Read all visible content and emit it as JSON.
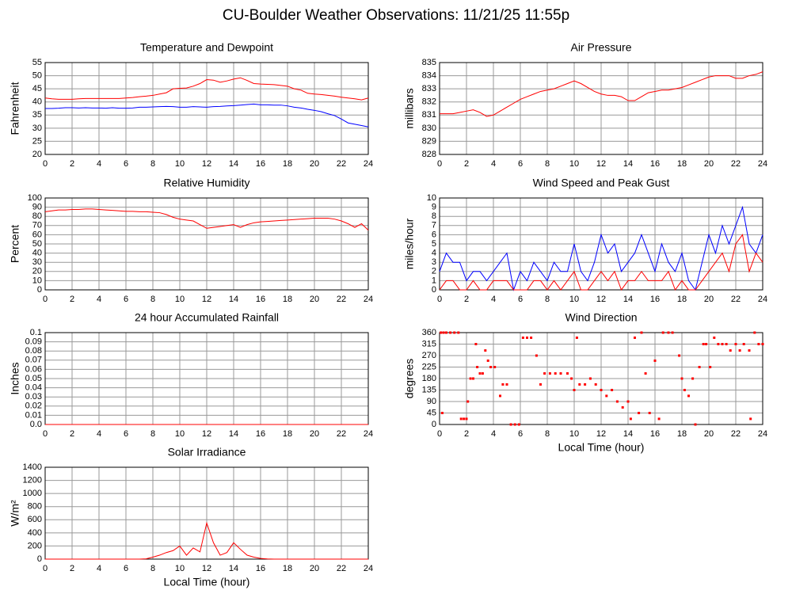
{
  "title": "CU-Boulder Weather Observations: 11/21/25 11:55p",
  "chart_data": [
    {
      "type": "line",
      "title": "Temperature and Dewpoint",
      "ylabel": "Fahrenheit",
      "x": [
        0,
        0.5,
        1,
        1.5,
        2,
        2.5,
        3,
        3.5,
        4,
        4.5,
        5,
        5.5,
        6,
        6.5,
        7,
        7.5,
        8,
        8.5,
        9,
        9.5,
        10,
        10.5,
        11,
        11.5,
        12,
        12.5,
        13,
        13.5,
        14,
        14.5,
        15,
        15.5,
        16,
        16.5,
        17,
        17.5,
        18,
        18.5,
        19,
        19.5,
        20,
        20.5,
        21,
        21.5,
        22,
        22.5,
        23,
        23.5,
        24
      ],
      "series": [
        {
          "color": "#ff0000",
          "values": [
            41.5,
            41.2,
            41,
            41,
            41,
            41.2,
            41.3,
            41.3,
            41.3,
            41.3,
            41.3,
            41.3,
            41.5,
            41.7,
            42,
            42.2,
            42.5,
            43,
            43.5,
            45,
            45.2,
            45.3,
            46,
            47,
            48.5,
            48.3,
            47.5,
            48,
            48.7,
            49.2,
            48.2,
            47,
            46.8,
            46.7,
            46.6,
            46.3,
            46,
            45,
            44.5,
            43.3,
            43,
            42.8,
            42.5,
            42.2,
            41.8,
            41.5,
            41.2,
            40.8,
            41.5
          ]
        },
        {
          "color": "#0000ff",
          "values": [
            37.5,
            37.5,
            37.6,
            37.8,
            37.8,
            37.7,
            37.8,
            37.7,
            37.7,
            37.6,
            37.8,
            37.6,
            37.6,
            37.7,
            38,
            38,
            38.1,
            38.2,
            38.3,
            38.2,
            38,
            38,
            38.2,
            38.1,
            38,
            38.2,
            38.3,
            38.5,
            38.6,
            38.8,
            39,
            39.2,
            38.9,
            38.9,
            38.8,
            38.8,
            38.5,
            38,
            37.7,
            37.2,
            36.8,
            36.3,
            35.5,
            34.8,
            33.5,
            32,
            31.5,
            31,
            30.5
          ]
        }
      ],
      "xlim": [
        0,
        24
      ],
      "xticks": [
        0,
        2,
        4,
        6,
        8,
        10,
        12,
        14,
        16,
        18,
        20,
        22,
        24
      ],
      "ylim": [
        20,
        55
      ],
      "yticks": [
        20,
        25,
        30,
        35,
        40,
        45,
        50,
        55
      ],
      "grid": true
    },
    {
      "type": "line",
      "title": "Air Pressure",
      "ylabel": "millibars",
      "x": [
        0,
        0.5,
        1,
        1.5,
        2,
        2.5,
        3,
        3.5,
        4,
        4.5,
        5,
        5.5,
        6,
        6.5,
        7,
        7.5,
        8,
        8.5,
        9,
        9.5,
        10,
        10.5,
        11,
        11.5,
        12,
        12.5,
        13,
        13.5,
        14,
        14.5,
        15,
        15.5,
        16,
        16.5,
        17,
        17.5,
        18,
        18.5,
        19,
        19.5,
        20,
        20.5,
        21,
        21.5,
        22,
        22.5,
        23,
        23.5,
        24
      ],
      "series": [
        {
          "color": "#ff0000",
          "values": [
            831.1,
            831.1,
            831.1,
            831.2,
            831.3,
            831.4,
            831.2,
            830.9,
            831,
            831.3,
            831.6,
            831.9,
            832.2,
            832.4,
            832.6,
            832.8,
            832.9,
            833,
            833.2,
            833.4,
            833.6,
            833.4,
            833.1,
            832.8,
            832.6,
            832.5,
            832.5,
            832.4,
            832.1,
            832.1,
            832.4,
            832.7,
            832.8,
            832.9,
            832.9,
            833,
            833.1,
            833.3,
            833.5,
            833.7,
            833.9,
            834,
            834,
            834,
            833.8,
            833.8,
            834,
            834.1,
            834.3
          ]
        }
      ],
      "xlim": [
        0,
        24
      ],
      "xticks": [
        0,
        2,
        4,
        6,
        8,
        10,
        12,
        14,
        16,
        18,
        20,
        22,
        24
      ],
      "ylim": [
        828,
        835
      ],
      "yticks": [
        828,
        829,
        830,
        831,
        832,
        833,
        834,
        835
      ],
      "grid": true
    },
    {
      "type": "line",
      "title": "Relative Humidity",
      "ylabel": "Percent",
      "x": [
        0,
        0.5,
        1,
        1.5,
        2,
        2.5,
        3,
        3.5,
        4,
        4.5,
        5,
        5.5,
        6,
        6.5,
        7,
        7.5,
        8,
        8.5,
        9,
        9.5,
        10,
        10.5,
        11,
        11.5,
        12,
        12.5,
        13,
        13.5,
        14,
        14.5,
        15,
        15.5,
        16,
        16.5,
        17,
        17.5,
        18,
        18.5,
        19,
        19.5,
        20,
        20.5,
        21,
        21.5,
        22,
        22.5,
        23,
        23.5,
        24
      ],
      "series": [
        {
          "color": "#ff0000",
          "values": [
            85,
            86,
            87,
            87,
            87.5,
            87.5,
            88,
            88,
            87.5,
            87,
            86.5,
            86,
            85.5,
            85.5,
            85,
            85,
            84.5,
            84,
            82,
            79,
            77,
            76,
            75,
            71,
            67,
            68,
            69,
            70,
            71,
            68,
            71,
            73,
            74,
            74.5,
            75,
            75.5,
            76,
            76.5,
            77,
            77.5,
            78,
            78,
            78,
            77,
            75,
            72,
            68,
            72,
            65
          ]
        }
      ],
      "xlim": [
        0,
        24
      ],
      "xticks": [
        0,
        2,
        4,
        6,
        8,
        10,
        12,
        14,
        16,
        18,
        20,
        22,
        24
      ],
      "ylim": [
        0,
        100
      ],
      "yticks": [
        0,
        10,
        20,
        30,
        40,
        50,
        60,
        70,
        80,
        90,
        100
      ],
      "grid": true
    },
    {
      "type": "line",
      "title": "Wind Speed and Peak Gust",
      "ylabel": "miles/hour",
      "x": [
        0,
        0.5,
        1,
        1.5,
        2,
        2.5,
        3,
        3.5,
        4,
        4.5,
        5,
        5.5,
        6,
        6.5,
        7,
        7.5,
        8,
        8.5,
        9,
        9.5,
        10,
        10.5,
        11,
        11.5,
        12,
        12.5,
        13,
        13.5,
        14,
        14.5,
        15,
        15.5,
        16,
        16.5,
        17,
        17.5,
        18,
        18.5,
        19,
        19.5,
        20,
        20.5,
        21,
        21.5,
        22,
        22.5,
        23,
        23.5,
        24
      ],
      "series": [
        {
          "color": "#0000ff",
          "values": [
            2,
            4,
            3,
            3,
            1,
            2,
            2,
            1,
            2,
            3,
            4,
            0,
            2,
            1,
            3,
            2,
            1,
            3,
            2,
            2,
            5,
            2,
            1,
            3,
            6,
            4,
            5,
            2,
            3,
            4,
            6,
            4,
            2,
            5,
            3,
            2,
            4,
            1,
            0,
            3,
            6,
            4,
            7,
            5,
            7,
            9,
            5,
            4,
            6
          ]
        },
        {
          "color": "#ff0000",
          "values": [
            0,
            1,
            1,
            0,
            0,
            1,
            0,
            0,
            1,
            1,
            1,
            0,
            0,
            0,
            1,
            1,
            0,
            1,
            0,
            1,
            2,
            0,
            0,
            1,
            2,
            1,
            2,
            0,
            1,
            1,
            2,
            1,
            1,
            1,
            2,
            0,
            1,
            0,
            0,
            1,
            2,
            3,
            4,
            2,
            5,
            6,
            2,
            4,
            3
          ]
        }
      ],
      "xlim": [
        0,
        24
      ],
      "xticks": [
        0,
        2,
        4,
        6,
        8,
        10,
        12,
        14,
        16,
        18,
        20,
        22,
        24
      ],
      "ylim": [
        0,
        10
      ],
      "yticks": [
        0,
        1,
        2,
        3,
        4,
        5,
        6,
        7,
        8,
        9,
        10
      ],
      "grid": true
    },
    {
      "type": "line",
      "title": "24 hour Accumulated Rainfall",
      "ylabel": "Inches",
      "x": [
        0,
        24
      ],
      "series": [
        {
          "color": "#ff0000",
          "values": [
            0,
            0
          ]
        }
      ],
      "xlim": [
        0,
        24
      ],
      "xticks": [
        0,
        2,
        4,
        6,
        8,
        10,
        12,
        14,
        16,
        18,
        20,
        22,
        24
      ],
      "ylim": [
        0,
        0.1
      ],
      "yticks": [
        {
          "value": 0,
          "label": "0.0"
        },
        0.01,
        0.02,
        0.03,
        0.04,
        0.05,
        0.06,
        0.07,
        0.08,
        0.09,
        0.1
      ],
      "grid": true
    },
    {
      "type": "scatter",
      "title": "Wind Direction",
      "ylabel": "degrees",
      "xlabel": "Local Time (hour)",
      "x": [
        0.1,
        0.3,
        0.5,
        0.8,
        1.1,
        1.4,
        0.2,
        1.6,
        1.8,
        2,
        2.1,
        2.3,
        2.5,
        2.7,
        2.8,
        3,
        3.2,
        3.4,
        3.6,
        3.8,
        4.1,
        4.5,
        4.7,
        5,
        5.3,
        5.6,
        5.9,
        6.2,
        6.5,
        6.8,
        7.2,
        7.5,
        7.8,
        8.2,
        8.6,
        9,
        9.5,
        9.8,
        10,
        10.2,
        10.4,
        10.8,
        11.2,
        11.6,
        12,
        12.4,
        12.8,
        13.2,
        13.6,
        14,
        14.2,
        14.5,
        14.8,
        15,
        15.3,
        15.6,
        16,
        16.3,
        16.6,
        17,
        17.3,
        17.8,
        18,
        18.2,
        18.5,
        18.8,
        19,
        19.3,
        19.6,
        19.8,
        20.1,
        20.4,
        20.7,
        21,
        21.3,
        21.6,
        22,
        22.3,
        22.6,
        23,
        23.1,
        23.4,
        23.7,
        24
      ],
      "series": [
        {
          "color": "#ff0000",
          "values": [
            360,
            360,
            360,
            360,
            360,
            360,
            45,
            22,
            22,
            22,
            90,
            180,
            180,
            315,
            225,
            200,
            200,
            290,
            250,
            225,
            225,
            112,
            157,
            157,
            0,
            0,
            0,
            340,
            340,
            340,
            270,
            157,
            200,
            200,
            200,
            200,
            200,
            180,
            135,
            340,
            157,
            157,
            180,
            157,
            135,
            112,
            135,
            90,
            67,
            90,
            22,
            340,
            45,
            360,
            200,
            45,
            250,
            22,
            360,
            360,
            360,
            270,
            180,
            135,
            112,
            180,
            0,
            225,
            315,
            315,
            225,
            340,
            315,
            315,
            315,
            290,
            315,
            290,
            315,
            290,
            22,
            360,
            315,
            315
          ]
        }
      ],
      "xlim": [
        0,
        24
      ],
      "xticks": [
        0,
        2,
        4,
        6,
        8,
        10,
        12,
        14,
        16,
        18,
        20,
        22,
        24
      ],
      "ylim": [
        0,
        360
      ],
      "yticks": [
        0,
        45,
        90,
        135,
        180,
        225,
        270,
        315,
        360
      ],
      "grid": true
    },
    {
      "type": "line",
      "title": "Solar Irradiance",
      "ylabel": "W/m²",
      "xlabel": "Local Time (hour)",
      "x": [
        0,
        0.5,
        1,
        1.5,
        2,
        2.5,
        3,
        3.5,
        4,
        4.5,
        5,
        5.5,
        6,
        6.5,
        7,
        7.5,
        8,
        8.5,
        9,
        9.5,
        10,
        10.5,
        11,
        11.5,
        12,
        12.5,
        13,
        13.5,
        14,
        14.5,
        15,
        15.5,
        16,
        16.5,
        17,
        17.5,
        18,
        18.5,
        19,
        19.5,
        20,
        20.5,
        21,
        21.5,
        22,
        22.5,
        23,
        23.5,
        24
      ],
      "series": [
        {
          "color": "#ff0000",
          "values": [
            0,
            0,
            0,
            0,
            0,
            0,
            0,
            0,
            0,
            0,
            0,
            0,
            0,
            0,
            0,
            5,
            30,
            60,
            100,
            130,
            200,
            60,
            170,
            110,
            550,
            250,
            60,
            100,
            250,
            150,
            60,
            30,
            10,
            3,
            0,
            0,
            0,
            0,
            0,
            0,
            0,
            0,
            0,
            0,
            0,
            0,
            0,
            0,
            0
          ]
        }
      ],
      "xlim": [
        0,
        24
      ],
      "xticks": [
        0,
        2,
        4,
        6,
        8,
        10,
        12,
        14,
        16,
        18,
        20,
        22,
        24
      ],
      "ylim": [
        0,
        1400
      ],
      "yticks": [
        0,
        200,
        400,
        600,
        800,
        1000,
        1200,
        1400
      ],
      "grid": true
    }
  ]
}
